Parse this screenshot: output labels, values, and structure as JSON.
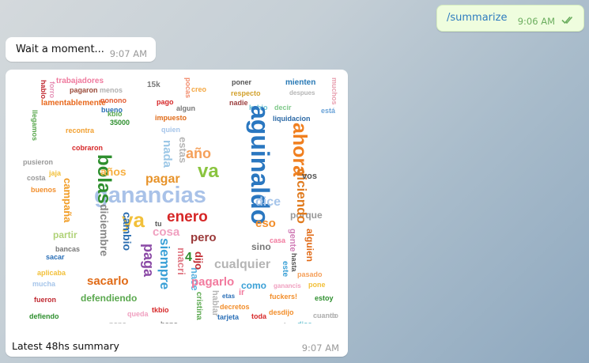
{
  "messages": {
    "command": {
      "text": "/summarize",
      "time": "9:06 AM"
    },
    "wait": {
      "text": "Wait a moment...",
      "time": "9:07 AM"
    },
    "summary": {
      "caption": "Latest 48hs summary",
      "time": "9:07 AM"
    }
  },
  "colors": {
    "outgoing_bubble": "#effdde",
    "link": "#2f7cbf",
    "check": "#6cae5f"
  },
  "wordcloud": [
    {
      "t": "trabajadores",
      "c": "#ef7a9e"
    },
    {
      "t": "hablo",
      "c": "#c02830"
    },
    {
      "t": "forro",
      "c": "#e58fb5"
    },
    {
      "t": "pagaron",
      "c": "#9a4b3a"
    },
    {
      "t": "lamentablemente",
      "c": "#e8681c"
    },
    {
      "t": "llegamos",
      "c": "#5aa84e"
    },
    {
      "t": "menos",
      "c": "#b0b0b0"
    },
    {
      "t": "nonono",
      "c": "#e25b31"
    },
    {
      "t": "bueno",
      "c": "#2a6fb7"
    },
    {
      "t": "15k",
      "c": "#777"
    },
    {
      "t": "pocas",
      "c": "#f28c6d"
    },
    {
      "t": "creo",
      "c": "#f4a742"
    },
    {
      "t": "poner",
      "c": "#555"
    },
    {
      "t": "mienten",
      "c": "#2778b5"
    },
    {
      "t": "respecto",
      "c": "#d2a12c"
    },
    {
      "t": "nadie",
      "c": "#9b3f3f"
    },
    {
      "t": "kabio",
      "c": "#6ec4d3"
    },
    {
      "t": "decir",
      "c": "#7fc98a"
    },
    {
      "t": "despues",
      "c": "#b5b5b5"
    },
    {
      "t": "muchos",
      "c": "#e8a0b0"
    },
    {
      "t": "liquidacion",
      "c": "#2d6aa6"
    },
    {
      "t": "está",
      "c": "#6aa3d8"
    },
    {
      "t": "aguinaldo",
      "c": "#2a77c0"
    },
    {
      "t": "ahora",
      "c": "#f07f1f"
    },
    {
      "t": "ganancias",
      "c": "#a9c2e8"
    },
    {
      "t": "bolas",
      "c": "#2e8f2e"
    },
    {
      "t": "enero",
      "c": "#d62727"
    },
    {
      "t": "va",
      "c": "#8ac43f"
    },
    {
      "t": "ya",
      "c": "#f2c03a"
    },
    {
      "t": "año",
      "c": "#f5a05a"
    },
    {
      "t": "años",
      "c": "#f7b042"
    },
    {
      "t": "nada",
      "c": "#9cc7e6"
    },
    {
      "t": "estas",
      "c": "#b5b5b5"
    },
    {
      "t": "pagar",
      "c": "#e7932a"
    },
    {
      "t": "diciembre",
      "c": "#888"
    },
    {
      "t": "cambio",
      "c": "#2a6db0"
    },
    {
      "t": "paga",
      "c": "#8b4aa6"
    },
    {
      "t": "siempre",
      "c": "#3aa0d6"
    },
    {
      "t": "macri",
      "c": "#e07a86"
    },
    {
      "t": "hace",
      "c": "#5db3e0"
    },
    {
      "t": "pero",
      "c": "#9b3a3a"
    },
    {
      "t": "cosa",
      "c": "#f0a0c0"
    },
    {
      "t": "pagarlo",
      "c": "#f27a9e"
    },
    {
      "t": "cualquier",
      "c": "#b5b5b5"
    },
    {
      "t": "dice",
      "c": "#a6c5ea"
    },
    {
      "t": "eso",
      "c": "#f28e2b"
    },
    {
      "t": "porque",
      "c": "#999"
    },
    {
      "t": "diciendo",
      "c": "#e07b1f"
    },
    {
      "t": "vos",
      "c": "#555"
    },
    {
      "t": "campaña",
      "c": "#f19c24"
    },
    {
      "t": "sacarlo",
      "c": "#e06a16"
    },
    {
      "t": "defendiendo",
      "c": "#5aa84e"
    },
    {
      "t": "como",
      "c": "#3aa0d6"
    },
    {
      "t": "sino",
      "c": "#777"
    },
    {
      "t": "dijo",
      "c": "#c02830"
    },
    {
      "t": "4",
      "c": "#2e8f2e"
    },
    {
      "t": "partir",
      "c": "#b0d278"
    },
    {
      "t": "cuanto",
      "c": "#c0c0c0"
    },
    {
      "t": "hacer",
      "c": "#e58fb5"
    },
    {
      "t": "dios",
      "c": "#6ec4d3"
    },
    {
      "t": "compromiso",
      "c": "#555"
    },
    {
      "t": "tarjeta",
      "c": "#2a6fb7"
    },
    {
      "t": "toda",
      "c": "#d62728"
    },
    {
      "t": "hablar",
      "c": "#b5b5b5"
    },
    {
      "t": "cristina",
      "c": "#5aa84e"
    },
    {
      "t": "estoy",
      "c": "#2e8f2e"
    },
    {
      "t": "fuckers!",
      "c": "#f28e2b"
    },
    {
      "t": "gente",
      "c": "#d280b8"
    },
    {
      "t": "alguien",
      "c": "#e06a16"
    },
    {
      "t": "bono",
      "c": "#888"
    },
    {
      "t": "mucha",
      "c": "#a6c5ea"
    },
    {
      "t": "fueron",
      "c": "#c02830"
    },
    {
      "t": "defiendo",
      "c": "#2e8f2e"
    },
    {
      "t": "pro",
      "c": "#a6c5ea"
    },
    {
      "t": "buenos",
      "c": "#f28e2b"
    },
    {
      "t": "costa",
      "c": "#999"
    },
    {
      "t": "sacar",
      "c": "#2a6fb7"
    },
    {
      "t": "aplicaba",
      "c": "#f2c03a"
    },
    {
      "t": "bancas",
      "c": "#777"
    },
    {
      "t": "queda",
      "c": "#f0a0c0"
    },
    {
      "t": "nono",
      "c": "#b5b5b5"
    },
    {
      "t": "decretos",
      "c": "#f28e2b"
    },
    {
      "t": "etas",
      "c": "#2a6fb7"
    },
    {
      "t": "ir",
      "c": "#f27a9e"
    },
    {
      "t": "desdijo",
      "c": "#f28e2b"
    },
    {
      "t": "pasado",
      "c": "#f5a05a"
    },
    {
      "t": "pone",
      "c": "#f2c03a"
    },
    {
      "t": "casa",
      "c": "#f27a9e"
    },
    {
      "t": "hasta",
      "c": "#555"
    },
    {
      "t": "este",
      "c": "#3aa0d6"
    },
    {
      "t": "quien",
      "c": "#a6c5ea"
    },
    {
      "t": "tu",
      "c": "#555"
    },
    {
      "t": "impuesto",
      "c": "#e06a16"
    },
    {
      "t": "pago",
      "c": "#d62728"
    },
    {
      "t": "algun",
      "c": "#777"
    },
    {
      "t": "kbio",
      "c": "#5aa84e"
    },
    {
      "t": "35000",
      "c": "#2e8f2e"
    },
    {
      "t": "recontra",
      "c": "#f2a030"
    },
    {
      "t": "cobraron",
      "c": "#d62728"
    },
    {
      "t": "pusieron",
      "c": "#999"
    },
    {
      "t": "jaja",
      "c": "#f2c03a"
    },
    {
      "t": "tkbio",
      "c": "#d62728"
    },
    {
      "t": "ganancis",
      "c": "#f0a0c0"
    },
    {
      "t": "cuando",
      "c": "#b5b5b5"
    }
  ]
}
